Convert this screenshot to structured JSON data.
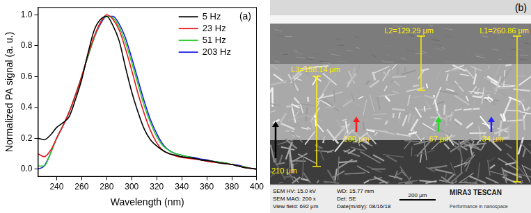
{
  "chart_data": {
    "type": "line",
    "panel_label": "(a)",
    "x_label": "Wavelength (nm)",
    "y_label": "Normalized PA signal (a. u.)",
    "x": [
      225,
      230,
      235,
      240,
      245,
      250,
      255,
      260,
      265,
      270,
      275,
      280,
      285,
      290,
      295,
      300,
      305,
      310,
      315,
      320,
      325,
      330,
      335,
      340,
      345,
      350,
      355,
      360,
      365,
      370,
      375,
      380,
      385,
      390,
      395,
      400
    ],
    "series": [
      {
        "name": "5 Hz",
        "color": "#000000",
        "values": [
          0.2,
          0.19,
          0.22,
          0.27,
          0.3,
          0.34,
          0.45,
          0.58,
          0.75,
          0.9,
          0.97,
          0.99,
          0.93,
          0.83,
          0.66,
          0.5,
          0.37,
          0.26,
          0.19,
          0.15,
          0.12,
          0.1,
          0.09,
          0.08,
          0.075,
          0.07,
          0.06,
          0.055,
          0.05,
          0.04,
          0.035,
          0.03,
          0.02,
          0.01,
          0.005,
          0
        ]
      },
      {
        "name": "23 Hz",
        "color": "#e8141c",
        "values": [
          0.1,
          0.08,
          0.12,
          0.2,
          0.28,
          0.37,
          0.48,
          0.6,
          0.74,
          0.86,
          0.95,
          1.0,
          0.97,
          0.9,
          0.78,
          0.64,
          0.49,
          0.36,
          0.25,
          0.17,
          0.12,
          0.1,
          0.085,
          0.075,
          0.07,
          0.065,
          0.06,
          0.05,
          0.045,
          0.04,
          0.035,
          0.03,
          0.02,
          0.01,
          0.005,
          0
        ]
      },
      {
        "name": "51 Hz",
        "color": "#2ecc2e",
        "values": [
          0.02,
          0.02,
          0.1,
          0.2,
          0.28,
          0.37,
          0.48,
          0.6,
          0.73,
          0.85,
          0.95,
          0.99,
          0.98,
          0.92,
          0.82,
          0.69,
          0.55,
          0.41,
          0.3,
          0.21,
          0.15,
          0.12,
          0.1,
          0.09,
          0.08,
          0.07,
          0.06,
          0.055,
          0.05,
          0.045,
          0.04,
          0.03,
          0.02,
          0.015,
          0.005,
          0
        ]
      },
      {
        "name": "203 Hz",
        "color": "#1a1ae6",
        "values": [
          0.0,
          0.02,
          0.1,
          0.2,
          0.28,
          0.37,
          0.48,
          0.6,
          0.73,
          0.85,
          0.94,
          0.99,
          0.99,
          0.94,
          0.85,
          0.72,
          0.58,
          0.44,
          0.32,
          0.23,
          0.16,
          0.12,
          0.1,
          0.09,
          0.08,
          0.075,
          0.065,
          0.06,
          0.05,
          0.045,
          0.04,
          0.03,
          0.025,
          0.015,
          0.005,
          0
        ]
      }
    ],
    "xlim": [
      225,
      400
    ],
    "xticks": [
      240,
      260,
      280,
      300,
      320,
      340,
      360,
      380,
      400
    ],
    "ylim": [
      -0.05,
      1.05
    ],
    "yticks": [
      {
        "value": 0,
        "label": "0.0"
      },
      {
        "value": 0.2,
        "label": "0.2"
      },
      {
        "value": 0.4,
        "label": "0.4"
      },
      {
        "value": 0.6,
        "label": "0.6"
      },
      {
        "value": 0.8,
        "label": "0.8"
      },
      {
        "value": 1,
        "label": "1.0"
      }
    ],
    "grid": false,
    "legend": "upper right",
    "line_style": "solid"
  },
  "image_panel": {
    "label": "(b)",
    "measurements": [
      "L1=260.86 μm",
      "L2=129.29 μm",
      "L3=158.14 μm"
    ],
    "arrows": [
      {
        "text": "210 μm",
        "color": "#000000"
      },
      {
        "text": "100 μm",
        "color": "#ff1a1a"
      },
      {
        "text": "67 μm",
        "color": "#22dd22"
      },
      {
        "text": "34 μm",
        "color": "#2222ff"
      }
    ],
    "info_bar": [
      [
        "SEM HV: 15.0 kV",
        "WD: 15.77 mm",
        "MIRA3 TESCAN"
      ],
      [
        "SEM MAG: 200 x",
        "Det: SE",
        "200 μm"
      ],
      [
        "View field: 692 μm",
        "Date(m/d/y): 08/16/18",
        "Performance in nanospace"
      ]
    ]
  }
}
